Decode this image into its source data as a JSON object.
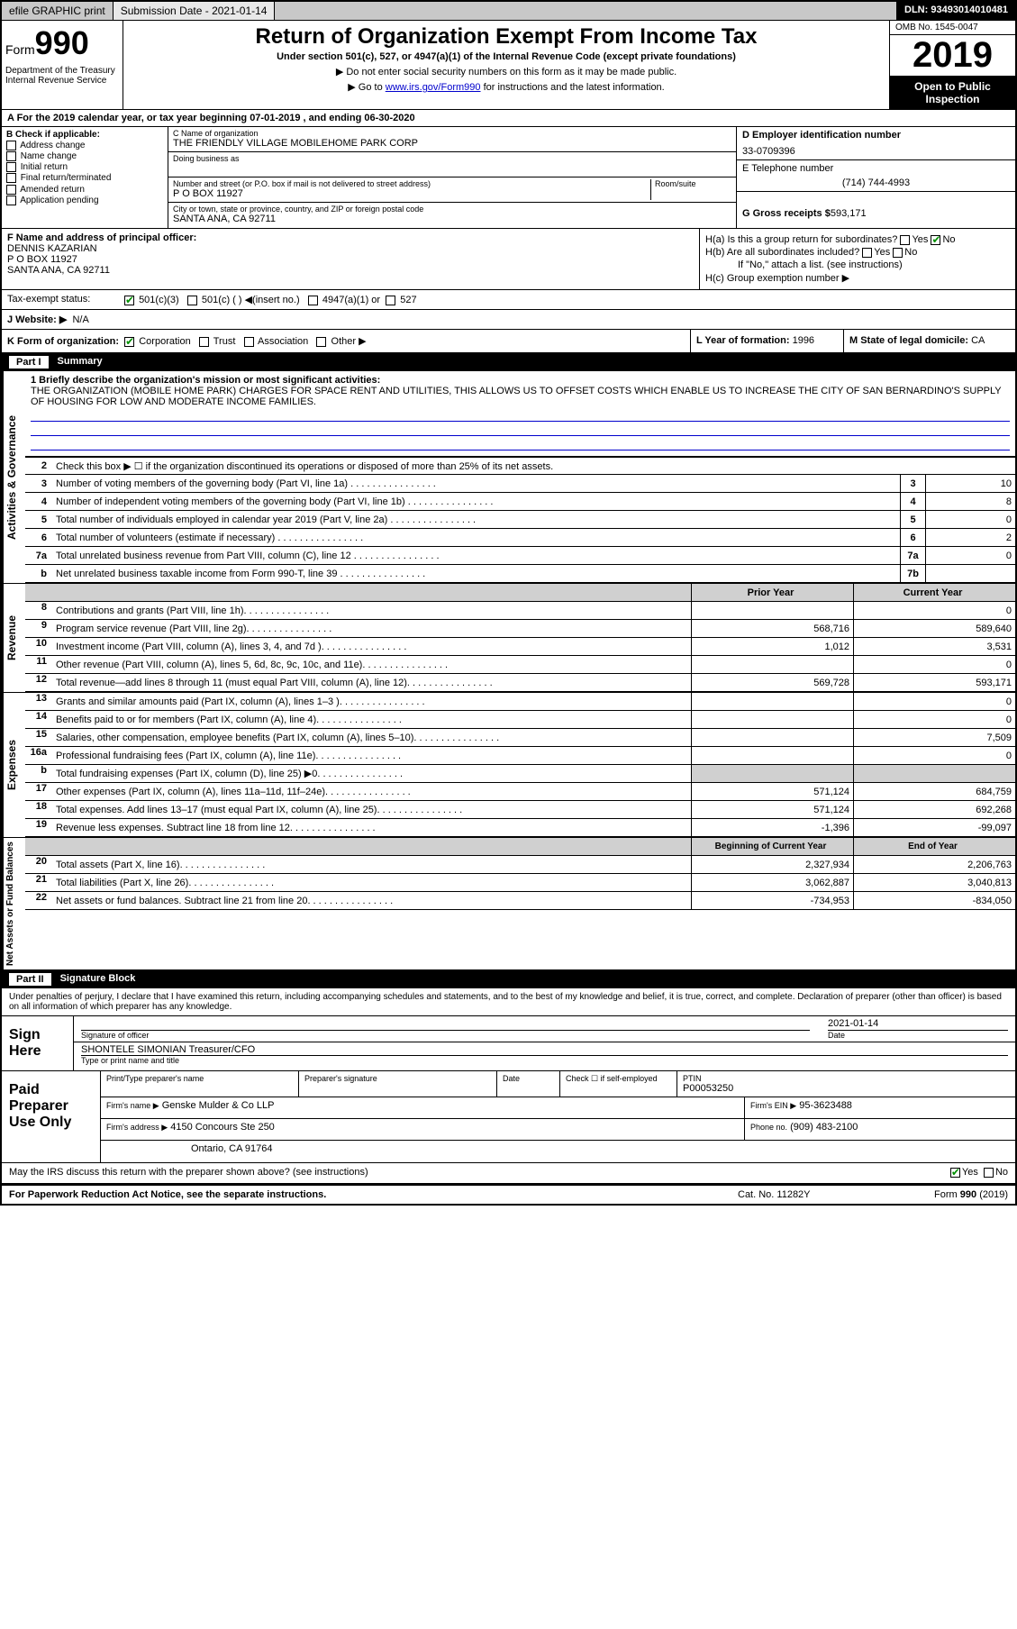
{
  "topbar": {
    "efile": "efile GRAPHIC print",
    "submission": "Submission Date - 2021-01-14",
    "dln": "DLN: 93493014010481"
  },
  "header": {
    "form_label": "Form",
    "form_number": "990",
    "dept": "Department of the Treasury\nInternal Revenue Service",
    "title": "Return of Organization Exempt From Income Tax",
    "subtitle": "Under section 501(c), 527, or 4947(a)(1) of the Internal Revenue Code (except private foundations)",
    "instr1": "▶ Do not enter social security numbers on this form as it may be made public.",
    "instr2_pre": "▶ Go to ",
    "instr2_link": "www.irs.gov/Form990",
    "instr2_post": " for instructions and the latest information.",
    "omb": "OMB No. 1545-0047",
    "year": "2019",
    "inspect": "Open to Public Inspection"
  },
  "period": "A For the 2019 calendar year, or tax year beginning 07-01-2019   , and ending 06-30-2020",
  "section_b": {
    "title": "B Check if applicable:",
    "items": [
      "Address change",
      "Name change",
      "Initial return",
      "Final return/terminated",
      "Amended return",
      "Application pending"
    ]
  },
  "section_c": {
    "name_label": "C Name of organization",
    "name": "THE FRIENDLY VILLAGE MOBILEHOME PARK CORP",
    "dba_label": "Doing business as",
    "dba": "",
    "addr_label": "Number and street (or P.O. box if mail is not delivered to street address)",
    "room_label": "Room/suite",
    "addr": "P O BOX 11927",
    "city_label": "City or town, state or province, country, and ZIP or foreign postal code",
    "city": "SANTA ANA, CA  92711"
  },
  "section_d": {
    "label": "D Employer identification number",
    "value": "33-0709396",
    "e_label": "E Telephone number",
    "e_value": "(714) 744-4993",
    "g_label": "G Gross receipts $",
    "g_value": "593,171"
  },
  "section_f": {
    "label": "F  Name and address of principal officer:",
    "name": "DENNIS KAZARIAN",
    "addr1": "P O BOX 11927",
    "addr2": "SANTA ANA, CA  92711"
  },
  "section_h": {
    "ha": "H(a)  Is this a group return for subordinates?",
    "hb": "H(b)  Are all subordinates included?",
    "hb_note": "If \"No,\" attach a list. (see instructions)",
    "hc": "H(c)  Group exemption number ▶"
  },
  "tax_status": {
    "label": "Tax-exempt status:",
    "opts": [
      "501(c)(3)",
      "501(c) (  ) ◀(insert no.)",
      "4947(a)(1) or",
      "527"
    ]
  },
  "website": {
    "label": "J Website: ▶",
    "value": "N/A"
  },
  "k": {
    "label": "K Form of organization:",
    "opts": [
      "Corporation",
      "Trust",
      "Association",
      "Other ▶"
    ]
  },
  "l": {
    "label": "L Year of formation:",
    "value": "1996"
  },
  "m": {
    "label": "M State of legal domicile:",
    "value": "CA"
  },
  "part1": {
    "header": "Summary",
    "mission_label": "1  Briefly describe the organization's mission or most significant activities:",
    "mission": "THE ORGANIZATION (MOBILE HOME PARK) CHARGES FOR SPACE RENT AND UTILITIES, THIS ALLOWS US TO OFFSET COSTS WHICH ENABLE US TO INCREASE THE CITY OF SAN BERNARDINO'S SUPPLY OF HOUSING FOR LOW AND MODERATE INCOME FAMILIES.",
    "line2": "Check this box ▶ ☐  if the organization discontinued its operations or disposed of more than 25% of its net assets.",
    "governance_lines": [
      {
        "no": "3",
        "text": "Number of voting members of the governing body (Part VI, line 1a)",
        "box": "3",
        "val": "10"
      },
      {
        "no": "4",
        "text": "Number of independent voting members of the governing body (Part VI, line 1b)",
        "box": "4",
        "val": "8"
      },
      {
        "no": "5",
        "text": "Total number of individuals employed in calendar year 2019 (Part V, line 2a)",
        "box": "5",
        "val": "0"
      },
      {
        "no": "6",
        "text": "Total number of volunteers (estimate if necessary)",
        "box": "6",
        "val": "2"
      },
      {
        "no": "7a",
        "text": "Total unrelated business revenue from Part VIII, column (C), line 12",
        "box": "7a",
        "val": "0"
      },
      {
        "no": "b",
        "text": "Net unrelated business taxable income from Form 990-T, line 39",
        "box": "7b",
        "val": ""
      }
    ],
    "col_headers": {
      "prior": "Prior Year",
      "current": "Current Year"
    },
    "revenue_lines": [
      {
        "no": "8",
        "text": "Contributions and grants (Part VIII, line 1h)",
        "prior": "",
        "current": "0"
      },
      {
        "no": "9",
        "text": "Program service revenue (Part VIII, line 2g)",
        "prior": "568,716",
        "current": "589,640"
      },
      {
        "no": "10",
        "text": "Investment income (Part VIII, column (A), lines 3, 4, and 7d )",
        "prior": "1,012",
        "current": "3,531"
      },
      {
        "no": "11",
        "text": "Other revenue (Part VIII, column (A), lines 5, 6d, 8c, 9c, 10c, and 11e)",
        "prior": "",
        "current": "0"
      },
      {
        "no": "12",
        "text": "Total revenue—add lines 8 through 11 (must equal Part VIII, column (A), line 12)",
        "prior": "569,728",
        "current": "593,171"
      }
    ],
    "expense_lines": [
      {
        "no": "13",
        "text": "Grants and similar amounts paid (Part IX, column (A), lines 1–3 )",
        "prior": "",
        "current": "0"
      },
      {
        "no": "14",
        "text": "Benefits paid to or for members (Part IX, column (A), line 4)",
        "prior": "",
        "current": "0"
      },
      {
        "no": "15",
        "text": "Salaries, other compensation, employee benefits (Part IX, column (A), lines 5–10)",
        "prior": "",
        "current": "7,509"
      },
      {
        "no": "16a",
        "text": "Professional fundraising fees (Part IX, column (A), line 11e)",
        "prior": "",
        "current": "0"
      },
      {
        "no": "b",
        "text": "Total fundraising expenses (Part IX, column (D), line 25) ▶0",
        "prior": "shade",
        "current": "shade"
      },
      {
        "no": "17",
        "text": "Other expenses (Part IX, column (A), lines 11a–11d, 11f–24e)",
        "prior": "571,124",
        "current": "684,759"
      },
      {
        "no": "18",
        "text": "Total expenses. Add lines 13–17 (must equal Part IX, column (A), line 25)",
        "prior": "571,124",
        "current": "692,268"
      },
      {
        "no": "19",
        "text": "Revenue less expenses. Subtract line 18 from line 12",
        "prior": "-1,396",
        "current": "-99,097"
      }
    ],
    "net_headers": {
      "begin": "Beginning of Current Year",
      "end": "End of Year"
    },
    "net_lines": [
      {
        "no": "20",
        "text": "Total assets (Part X, line 16)",
        "prior": "2,327,934",
        "current": "2,206,763"
      },
      {
        "no": "21",
        "text": "Total liabilities (Part X, line 26)",
        "prior": "3,062,887",
        "current": "3,040,813"
      },
      {
        "no": "22",
        "text": "Net assets or fund balances. Subtract line 21 from line 20",
        "prior": "-734,953",
        "current": "-834,050"
      }
    ]
  },
  "part2": {
    "header": "Signature Block",
    "decl": "Under penalties of perjury, I declare that I have examined this return, including accompanying schedules and statements, and to the best of my knowledge and belief, it is true, correct, and complete. Declaration of preparer (other than officer) is based on all information of which preparer has any knowledge.",
    "sign_here": "Sign Here",
    "sig_officer": "Signature of officer",
    "date_label": "Date",
    "date": "2021-01-14",
    "name": "SHONTELE SIMONIAN  Treasurer/CFO",
    "name_label": "Type or print name and title",
    "paid_label": "Paid Preparer Use Only",
    "prep_name_label": "Print/Type preparer's name",
    "prep_sig_label": "Preparer's signature",
    "check_label": "Check ☐ if self-employed",
    "ptin_label": "PTIN",
    "ptin": "P00053250",
    "firm_name_label": "Firm's name  ▶",
    "firm_name": "Genske Mulder & Co LLP",
    "firm_ein_label": "Firm's EIN ▶",
    "firm_ein": "95-3623488",
    "firm_addr_label": "Firm's address ▶",
    "firm_addr1": "4150 Concours Ste 250",
    "firm_addr2": "Ontario, CA  91764",
    "phone_label": "Phone no.",
    "phone": "(909) 483-2100",
    "discuss": "May the IRS discuss this return with the preparer shown above? (see instructions)"
  },
  "footer": {
    "left": "For Paperwork Reduction Act Notice, see the separate instructions.",
    "mid": "Cat. No. 11282Y",
    "right": "Form 990 (2019)"
  },
  "vtabs": {
    "gov": "Activities & Governance",
    "rev": "Revenue",
    "exp": "Expenses",
    "net": "Net Assets or Fund Balances"
  }
}
